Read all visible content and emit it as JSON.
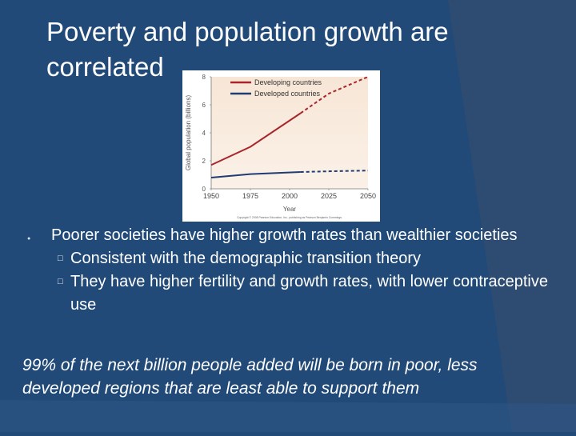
{
  "slide": {
    "title": "Poverty and population growth are correlated",
    "bullet": "Poorer societies have higher growth rates than wealthier societies",
    "sub_bullets": [
      "Consistent with the demographic transition theory",
      "They have higher fertility and growth rates, with lower contraceptive use"
    ],
    "footnote": "99% of the next billion people added will be born in poor, less developed regions that are least able to support them",
    "colors": {
      "background": "#214a78",
      "developing": "#a8262b",
      "developed": "#1f3c73"
    }
  },
  "chart_data": {
    "type": "line",
    "xlabel": "Year",
    "ylabel": "Global population (billions)",
    "xlim": [
      1950,
      2050
    ],
    "ylim": [
      0,
      8
    ],
    "x_ticks": [
      1950,
      1975,
      2000,
      2025,
      2050
    ],
    "y_ticks": [
      0,
      2,
      4,
      6,
      8
    ],
    "legend_position": "top-right",
    "projection_start": 2007,
    "series": [
      {
        "name": "Developing countries",
        "color": "#a8262b",
        "x": [
          1950,
          1975,
          2007,
          2025,
          2050
        ],
        "values": [
          1.7,
          3.0,
          5.4,
          6.8,
          8.0
        ]
      },
      {
        "name": "Developed countries",
        "color": "#1f3c73",
        "x": [
          1950,
          1975,
          2007,
          2025,
          2050
        ],
        "values": [
          0.8,
          1.05,
          1.2,
          1.25,
          1.3
        ]
      }
    ],
    "copyright": "Copyright © 2008 Pearson Education, Inc., publishing as Pearson Benjamin Cummings."
  }
}
